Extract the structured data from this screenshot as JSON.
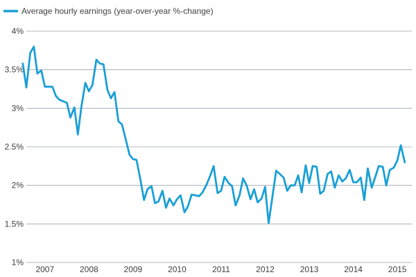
{
  "chart_data": {
    "type": "line",
    "legend": {
      "position": "top-left",
      "label": "Average hourly earnings (year-over-year %-change)"
    },
    "series_color": "#1a9fd6",
    "grid": {
      "horizontal": true,
      "vertical": false,
      "color": "#9aa4ad"
    },
    "ylim": [
      1,
      4
    ],
    "y_ticks": [
      {
        "value": 4,
        "label": "4%"
      },
      {
        "value": 3.5,
        "label": "3.5%"
      },
      {
        "value": 3,
        "label": "3%"
      },
      {
        "value": 2.5,
        "label": "2.5%"
      },
      {
        "value": 2,
        "label": "2%"
      },
      {
        "value": 1.5,
        "label": "1.5%"
      },
      {
        "value": 1,
        "label": "1%"
      }
    ],
    "xlim": [
      2006.83,
      2015.58
    ],
    "x_ticks": [
      {
        "value": 2007,
        "label": "2007"
      },
      {
        "value": 2008,
        "label": "2008"
      },
      {
        "value": 2009,
        "label": "2009"
      },
      {
        "value": 2010,
        "label": "2010"
      },
      {
        "value": 2011,
        "label": "2011"
      },
      {
        "value": 2012,
        "label": "2012"
      },
      {
        "value": 2013,
        "label": "2013"
      },
      {
        "value": 2014,
        "label": "2014"
      },
      {
        "value": 2015,
        "label": "2015"
      }
    ],
    "series": [
      {
        "x": [
          2006.75,
          2006.83,
          2006.92,
          2007.0,
          2007.08,
          2007.17,
          2007.25,
          2007.33,
          2007.42,
          2007.5,
          2007.58,
          2007.67,
          2007.75,
          2007.83,
          2007.92,
          2008.0,
          2008.08,
          2008.17,
          2008.25,
          2008.33,
          2008.42,
          2008.5,
          2008.58,
          2008.67,
          2008.75,
          2008.83,
          2008.92,
          2009.0,
          2009.08,
          2009.17,
          2009.25,
          2009.33,
          2009.42,
          2009.5,
          2009.58,
          2009.67,
          2009.75,
          2009.83,
          2009.92,
          2010.0,
          2010.08,
          2010.17,
          2010.25,
          2010.33,
          2010.42,
          2010.5,
          2010.58,
          2010.67,
          2010.75,
          2010.83,
          2010.92,
          2011.0,
          2011.08,
          2011.17,
          2011.25,
          2011.33,
          2011.42,
          2011.5,
          2011.58,
          2011.67,
          2011.75,
          2011.83,
          2011.92,
          2012.0,
          2012.08,
          2012.17,
          2012.25,
          2012.33,
          2012.42,
          2012.5,
          2012.58,
          2012.67,
          2012.75,
          2012.83,
          2012.92,
          2013.0,
          2013.08,
          2013.17,
          2013.25,
          2013.33,
          2013.42,
          2013.5,
          2013.58,
          2013.67,
          2013.75,
          2013.83,
          2013.92,
          2014.0,
          2014.08,
          2014.17,
          2014.25,
          2014.33,
          2014.42,
          2014.5,
          2014.58,
          2014.67,
          2014.75,
          2014.83,
          2014.92,
          2015.0,
          2015.08,
          2015.17,
          2015.25,
          2015.33,
          2015.42
        ],
        "values": [
          3.58,
          3.27,
          3.72,
          3.8,
          3.45,
          3.49,
          3.28,
          3.28,
          3.28,
          3.16,
          3.11,
          3.09,
          3.07,
          2.88,
          3.01,
          2.66,
          3.02,
          3.33,
          3.22,
          3.3,
          3.63,
          3.58,
          3.57,
          3.24,
          3.13,
          3.21,
          2.83,
          2.79,
          2.61,
          2.4,
          2.34,
          2.33,
          2.07,
          1.81,
          1.95,
          1.99,
          1.77,
          1.79,
          1.93,
          1.71,
          1.83,
          1.74,
          1.82,
          1.87,
          1.65,
          1.73,
          1.88,
          1.87,
          1.86,
          1.91,
          2.01,
          2.12,
          2.25,
          1.9,
          1.93,
          2.11,
          2.03,
          1.99,
          1.74,
          1.87,
          2.09,
          2.0,
          1.82,
          1.95,
          1.78,
          1.83,
          1.98,
          1.51,
          1.87,
          2.19,
          2.15,
          2.1,
          1.93,
          2.0,
          2.0,
          2.13,
          1.91,
          2.26,
          2.03,
          2.25,
          2.24,
          1.89,
          1.93,
          2.15,
          2.18,
          1.97,
          2.13,
          2.05,
          2.09,
          2.2,
          2.04,
          2.04,
          2.1,
          1.81,
          2.22,
          1.97,
          2.11,
          2.25,
          2.24,
          2.0,
          2.2,
          2.23,
          2.32,
          2.52,
          2.3
        ]
      }
    ]
  }
}
